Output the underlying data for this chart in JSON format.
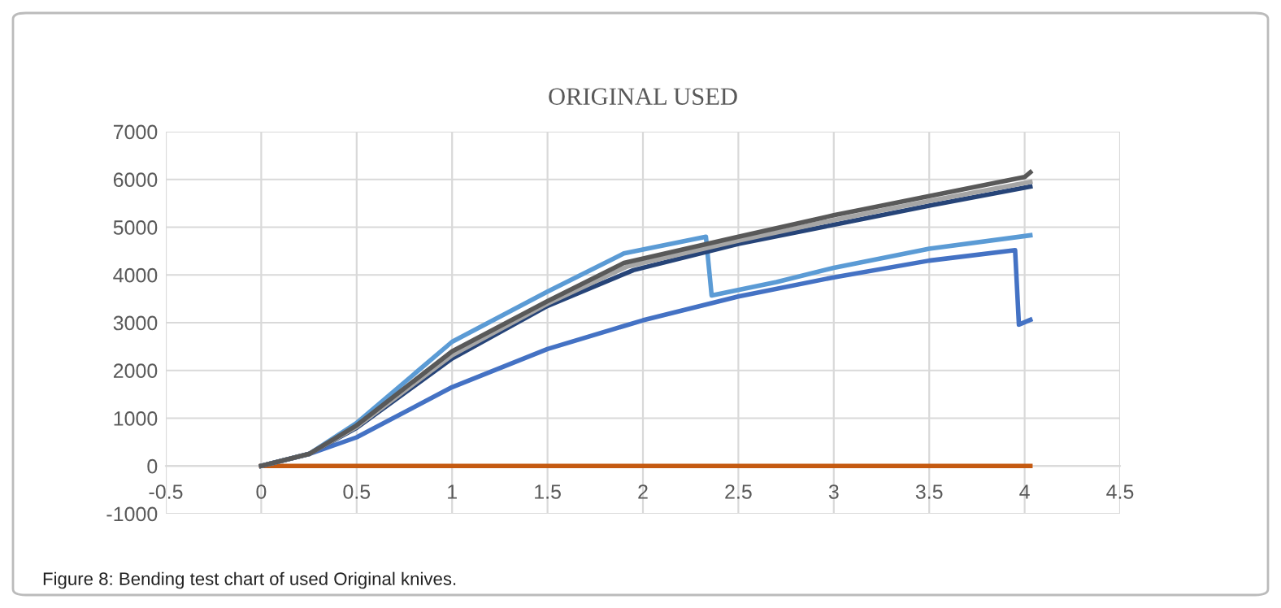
{
  "chart_data": {
    "type": "line",
    "title": "ORIGINAL USED",
    "annotations": [
      "Figure 8: Bending test chart of used Original knives."
    ],
    "xlim": [
      -0.5,
      4.5
    ],
    "xticks": [
      -0.5,
      0,
      0.5,
      1,
      1.5,
      2,
      2.5,
      3,
      3.5,
      4,
      4.5
    ],
    "ylim": [
      -1000,
      7000
    ],
    "yticks": [
      -1000,
      0,
      1000,
      2000,
      3000,
      4000,
      5000,
      6000,
      7000
    ],
    "grid": true,
    "marker": "none",
    "line_style": "solid",
    "series": [
      {
        "color": "#c55a11",
        "x": [
          0,
          4.03
        ],
        "values": [
          0,
          0
        ]
      },
      {
        "color": "#4472c4",
        "x": [
          0,
          0.25,
          0.5,
          1,
          1.5,
          2,
          2.5,
          3,
          3.5,
          3.95,
          3.97,
          4.03
        ],
        "values": [
          0,
          250,
          600,
          1650,
          2450,
          3050,
          3550,
          3950,
          4300,
          4520,
          2960,
          3060
        ]
      },
      {
        "color": "#5b9bd5",
        "x": [
          0,
          0.25,
          0.5,
          1,
          1.5,
          1.9,
          2.33,
          2.36,
          2.7,
          3,
          3.5,
          4.03
        ],
        "values": [
          0,
          250,
          900,
          2600,
          3650,
          4450,
          4800,
          3570,
          3850,
          4150,
          4550,
          4830
        ]
      },
      {
        "color": "#264478",
        "x": [
          0,
          0.25,
          0.5,
          1,
          1.5,
          1.95,
          2.5,
          3,
          3.5,
          4.03
        ],
        "values": [
          0,
          250,
          800,
          2250,
          3350,
          4100,
          4650,
          5050,
          5450,
          5850
        ]
      },
      {
        "color": "#a5a5a5",
        "x": [
          0,
          0.25,
          0.5,
          1,
          1.5,
          1.92,
          2.5,
          3,
          3.5,
          4.03
        ],
        "values": [
          0,
          250,
          820,
          2320,
          3400,
          4180,
          4720,
          5150,
          5550,
          5950
        ]
      },
      {
        "color": "#595959",
        "x": [
          0,
          0.25,
          0.5,
          1,
          1.5,
          1.9,
          2.5,
          3,
          3.5,
          4,
          4.03
        ],
        "values": [
          0,
          250,
          850,
          2400,
          3450,
          4250,
          4800,
          5250,
          5650,
          6050,
          6150
        ]
      }
    ]
  }
}
